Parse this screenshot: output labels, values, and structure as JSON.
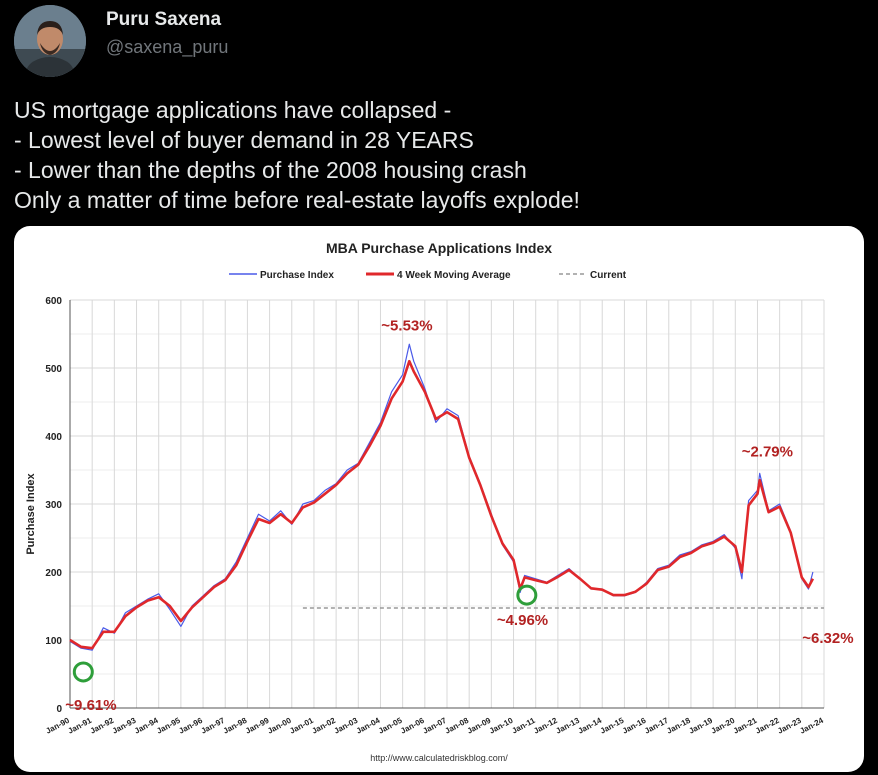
{
  "author": {
    "name": "Puru Saxena",
    "handle": "@saxena_puru"
  },
  "tweet": {
    "lines": [
      "US mortgage applications have collapsed -",
      "- Lowest level of buyer demand in 28 YEARS",
      "- Lower than the depths of the 2008 housing crash",
      "Only a matter of time before real-estate layoffs explode!"
    ]
  },
  "chart_data": {
    "type": "line",
    "title": "MBA Purchase Applications Index",
    "ylabel": "Purchase Index",
    "xlabel": "",
    "ylim": [
      0,
      600
    ],
    "yticks": [
      0,
      100,
      200,
      300,
      400,
      500,
      600
    ],
    "x_tick_labels": [
      "Jan-90",
      "Jan-91",
      "Jan-92",
      "Jan-93",
      "Jan-94",
      "Jan-95",
      "Jan-96",
      "Jan-97",
      "Jan-98",
      "Jan-99",
      "Jan-00",
      "Jan-01",
      "Jan-02",
      "Jan-03",
      "Jan-04",
      "Jan-05",
      "Jan-06",
      "Jan-07",
      "Jan-08",
      "Jan-09",
      "Jan-10",
      "Jan-11",
      "Jan-12",
      "Jan-13",
      "Jan-14",
      "Jan-15",
      "Jan-16",
      "Jan-17",
      "Jan-18",
      "Jan-19",
      "Jan-20",
      "Jan-21",
      "Jan-22",
      "Jan-23",
      "Jan-24"
    ],
    "grid": true,
    "legend_position": "top",
    "source": "http://www.calculatedriskblog.com/",
    "current_value": 147,
    "series": [
      {
        "name": "Purchase Index",
        "color": "#4a5ae8",
        "x": [
          1990.0,
          1990.5,
          1991.0,
          1991.5,
          1992.0,
          1992.5,
          1993.0,
          1993.5,
          1994.0,
          1994.5,
          1995.0,
          1995.5,
          1996.0,
          1996.5,
          1997.0,
          1997.5,
          1998.0,
          1998.5,
          1999.0,
          1999.5,
          2000.0,
          2000.5,
          2001.0,
          2001.5,
          2002.0,
          2002.5,
          2003.0,
          2003.5,
          2004.0,
          2004.5,
          2005.0,
          2005.3,
          2005.5,
          2006.0,
          2006.5,
          2007.0,
          2007.5,
          2008.0,
          2008.5,
          2009.0,
          2009.5,
          2010.0,
          2010.3,
          2010.5,
          2011.0,
          2011.5,
          2012.0,
          2012.5,
          2013.0,
          2013.5,
          2014.0,
          2014.5,
          2015.0,
          2015.5,
          2016.0,
          2016.5,
          2017.0,
          2017.5,
          2018.0,
          2018.5,
          2019.0,
          2019.5,
          2020.0,
          2020.3,
          2020.6,
          2021.0,
          2021.1,
          2021.5,
          2022.0,
          2022.5,
          2023.0,
          2023.3,
          2023.5
        ],
        "values": [
          98,
          88,
          85,
          118,
          110,
          140,
          150,
          160,
          168,
          145,
          120,
          150,
          165,
          180,
          190,
          215,
          250,
          285,
          275,
          290,
          270,
          300,
          305,
          320,
          330,
          350,
          360,
          390,
          420,
          465,
          490,
          535,
          510,
          470,
          420,
          440,
          430,
          370,
          330,
          285,
          240,
          215,
          170,
          195,
          190,
          185,
          195,
          205,
          190,
          175,
          175,
          165,
          165,
          170,
          185,
          205,
          210,
          225,
          230,
          240,
          245,
          255,
          235,
          190,
          305,
          320,
          345,
          290,
          300,
          260,
          190,
          175,
          200
        ]
      },
      {
        "name": "4 Week Moving Average",
        "color": "#e0282b",
        "x": [
          1990.0,
          1990.5,
          1991.0,
          1991.5,
          1992.0,
          1992.5,
          1993.0,
          1993.5,
          1994.0,
          1994.5,
          1995.0,
          1995.5,
          1996.0,
          1996.5,
          1997.0,
          1997.5,
          1998.0,
          1998.5,
          1999.0,
          1999.5,
          2000.0,
          2000.5,
          2001.0,
          2001.5,
          2002.0,
          2002.5,
          2003.0,
          2003.5,
          2004.0,
          2004.5,
          2005.0,
          2005.3,
          2005.5,
          2006.0,
          2006.5,
          2007.0,
          2007.5,
          2008.0,
          2008.5,
          2009.0,
          2009.5,
          2010.0,
          2010.3,
          2010.5,
          2011.0,
          2011.5,
          2012.0,
          2012.5,
          2013.0,
          2013.5,
          2014.0,
          2014.5,
          2015.0,
          2015.5,
          2016.0,
          2016.5,
          2017.0,
          2017.5,
          2018.0,
          2018.5,
          2019.0,
          2019.5,
          2020.0,
          2020.3,
          2020.6,
          2021.0,
          2021.1,
          2021.5,
          2022.0,
          2022.5,
          2023.0,
          2023.3,
          2023.5
        ],
        "values": [
          100,
          90,
          88,
          112,
          112,
          135,
          148,
          158,
          163,
          150,
          128,
          148,
          163,
          178,
          188,
          210,
          245,
          278,
          272,
          285,
          272,
          295,
          302,
          315,
          328,
          345,
          358,
          385,
          415,
          455,
          480,
          510,
          495,
          465,
          425,
          435,
          425,
          368,
          328,
          282,
          242,
          218,
          175,
          192,
          188,
          184,
          193,
          203,
          190,
          176,
          174,
          166,
          166,
          171,
          183,
          203,
          208,
          222,
          228,
          238,
          243,
          252,
          238,
          200,
          298,
          315,
          335,
          288,
          296,
          258,
          192,
          178,
          190
        ]
      },
      {
        "name": "Current",
        "color": "#999999",
        "style": "dashed",
        "x": [
          2000.5,
          2024.0
        ],
        "values": [
          147,
          147
        ]
      }
    ],
    "annotations": [
      {
        "text": "~9.61%",
        "color": "#b22222",
        "x": 1990.6,
        "y": 53,
        "circle": true
      },
      {
        "text": "~5.53%",
        "color": "#b22222",
        "x": 2005.3,
        "y": 555,
        "circle": false
      },
      {
        "text": "~4.96%",
        "color": "#b22222",
        "x": 2010.6,
        "y": 166,
        "circle": true
      },
      {
        "text": "~2.79%",
        "color": "#b22222",
        "x": 2021.1,
        "y": 370,
        "circle": false
      },
      {
        "text": "~6.32%",
        "color": "#b22222",
        "x": 2023.2,
        "y": 125,
        "circle": false
      }
    ]
  }
}
